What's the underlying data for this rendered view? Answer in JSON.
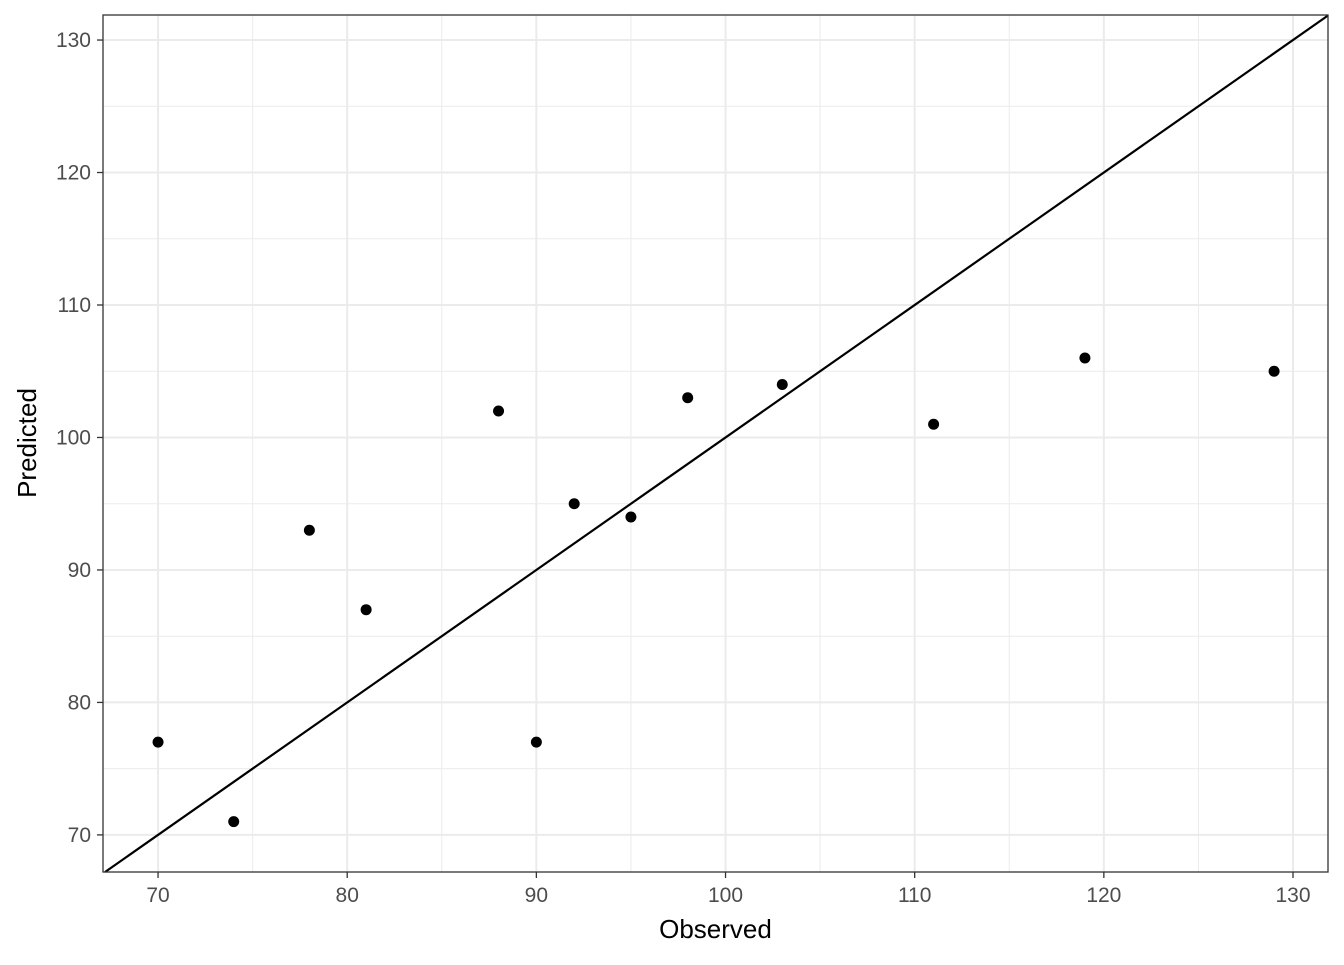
{
  "chart_data": {
    "type": "scatter",
    "title": "",
    "xlabel": "Observed",
    "ylabel": "Predicted",
    "xlim": [
      67.09,
      131.85
    ],
    "ylim": [
      67.2,
      131.89
    ],
    "x_ticks": [
      70,
      80,
      90,
      100,
      110,
      120,
      130
    ],
    "y_ticks": [
      70,
      80,
      90,
      100,
      110,
      120,
      130
    ],
    "x_minor": [
      75,
      85,
      95,
      105,
      115,
      125
    ],
    "y_minor": [
      75,
      85,
      95,
      105,
      115,
      125
    ],
    "grid": true,
    "reference_line": {
      "type": "identity",
      "slope": 1,
      "intercept": 0
    },
    "points": [
      {
        "x": 70,
        "y": 77
      },
      {
        "x": 74,
        "y": 71
      },
      {
        "x": 78,
        "y": 93
      },
      {
        "x": 81,
        "y": 87
      },
      {
        "x": 88,
        "y": 102
      },
      {
        "x": 90,
        "y": 77
      },
      {
        "x": 92,
        "y": 95
      },
      {
        "x": 95,
        "y": 94
      },
      {
        "x": 98,
        "y": 103
      },
      {
        "x": 103,
        "y": 104
      },
      {
        "x": 111,
        "y": 101
      },
      {
        "x": 119,
        "y": 106
      },
      {
        "x": 129,
        "y": 105
      }
    ],
    "colors": {
      "points": "#000000",
      "line": "#000000",
      "grid": "#ebebeb",
      "tick_text": "#4d4d4d"
    }
  }
}
